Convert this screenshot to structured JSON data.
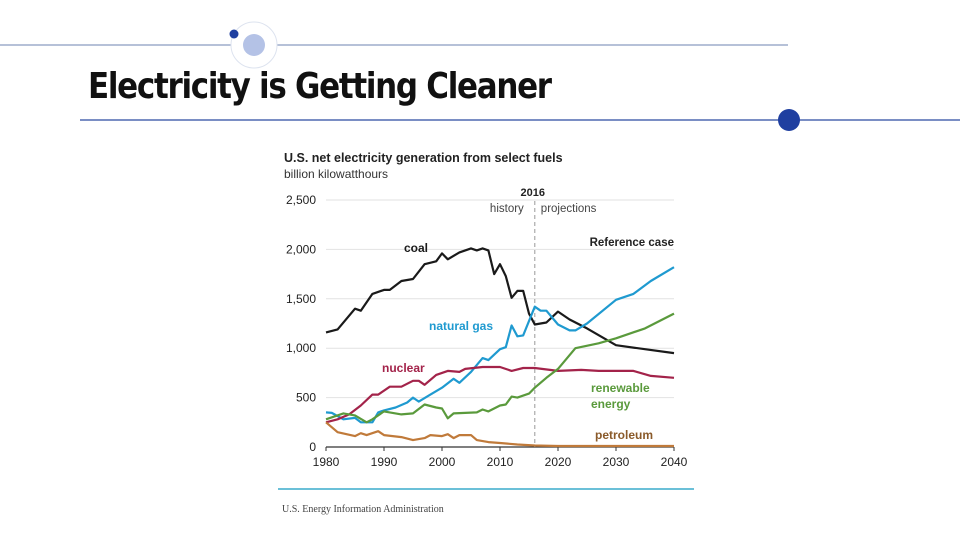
{
  "slide": {
    "title": "Electricity is Getting Cleaner",
    "accent_color": "#1f3fa0",
    "light_accent_color": "#b4c2e6"
  },
  "chart_data": {
    "type": "line",
    "title": "U.S. net electricity generation from select fuels",
    "subtitle": "billion kilowatthours",
    "source": "U.S. Energy Information Administration",
    "xlim": [
      1980,
      2040
    ],
    "ylim": [
      0,
      2500
    ],
    "x_ticks": [
      "1980",
      "1990",
      "2000",
      "2010",
      "2020",
      "2030",
      "2040"
    ],
    "y_ticks": [
      "0",
      "500",
      "1,000",
      "1,500",
      "2,000",
      "2,500"
    ],
    "grid": "horizontal",
    "divider": {
      "year": 2016,
      "label": "2016",
      "left_label": "history",
      "right_label": "projections"
    },
    "scenario_label": "Reference case",
    "series": [
      {
        "name": "coal",
        "color": "#1a1a1a",
        "points": [
          [
            1980,
            1160
          ],
          [
            1982,
            1190
          ],
          [
            1985,
            1400
          ],
          [
            1986,
            1380
          ],
          [
            1988,
            1550
          ],
          [
            1990,
            1590
          ],
          [
            1991,
            1590
          ],
          [
            1993,
            1680
          ],
          [
            1995,
            1700
          ],
          [
            1997,
            1850
          ],
          [
            1999,
            1880
          ],
          [
            2000,
            1960
          ],
          [
            2001,
            1900
          ],
          [
            2003,
            1970
          ],
          [
            2005,
            2010
          ],
          [
            2006,
            1990
          ],
          [
            2007,
            2010
          ],
          [
            2008,
            1990
          ],
          [
            2009,
            1750
          ],
          [
            2010,
            1850
          ],
          [
            2011,
            1730
          ],
          [
            2012,
            1510
          ],
          [
            2013,
            1580
          ],
          [
            2014,
            1580
          ],
          [
            2015,
            1350
          ],
          [
            2016,
            1240
          ],
          [
            2018,
            1260
          ],
          [
            2020,
            1370
          ],
          [
            2022,
            1290
          ],
          [
            2025,
            1200
          ],
          [
            2030,
            1030
          ],
          [
            2035,
            990
          ],
          [
            2040,
            950
          ]
        ]
      },
      {
        "name": "natural gas",
        "color": "#1f9ad0",
        "points": [
          [
            1980,
            350
          ],
          [
            1981,
            345
          ],
          [
            1983,
            280
          ],
          [
            1985,
            295
          ],
          [
            1986,
            250
          ],
          [
            1988,
            250
          ],
          [
            1989,
            350
          ],
          [
            1990,
            370
          ],
          [
            1992,
            400
          ],
          [
            1994,
            450
          ],
          [
            1995,
            500
          ],
          [
            1996,
            460
          ],
          [
            1998,
            530
          ],
          [
            2000,
            600
          ],
          [
            2002,
            690
          ],
          [
            2003,
            650
          ],
          [
            2005,
            760
          ],
          [
            2007,
            900
          ],
          [
            2008,
            880
          ],
          [
            2010,
            990
          ],
          [
            2011,
            1010
          ],
          [
            2012,
            1230
          ],
          [
            2013,
            1120
          ],
          [
            2014,
            1130
          ],
          [
            2016,
            1420
          ],
          [
            2017,
            1380
          ],
          [
            2018,
            1380
          ],
          [
            2020,
            1240
          ],
          [
            2022,
            1180
          ],
          [
            2023,
            1180
          ],
          [
            2025,
            1250
          ],
          [
            2030,
            1490
          ],
          [
            2033,
            1550
          ],
          [
            2036,
            1680
          ],
          [
            2040,
            1820
          ]
        ]
      },
      {
        "name": "nuclear",
        "color": "#a3234a",
        "points": [
          [
            1980,
            250
          ],
          [
            1982,
            280
          ],
          [
            1984,
            330
          ],
          [
            1986,
            420
          ],
          [
            1988,
            530
          ],
          [
            1989,
            530
          ],
          [
            1991,
            610
          ],
          [
            1993,
            610
          ],
          [
            1995,
            670
          ],
          [
            1996,
            670
          ],
          [
            1997,
            630
          ],
          [
            1999,
            730
          ],
          [
            2001,
            770
          ],
          [
            2003,
            760
          ],
          [
            2004,
            790
          ],
          [
            2007,
            810
          ],
          [
            2010,
            810
          ],
          [
            2012,
            770
          ],
          [
            2014,
            800
          ],
          [
            2016,
            800
          ],
          [
            2020,
            770
          ],
          [
            2024,
            780
          ],
          [
            2027,
            770
          ],
          [
            2033,
            770
          ],
          [
            2036,
            720
          ],
          [
            2040,
            700
          ]
        ]
      },
      {
        "name": "renewable energy",
        "color": "#5a9a3c",
        "points": [
          [
            1980,
            280
          ],
          [
            1983,
            340
          ],
          [
            1985,
            320
          ],
          [
            1987,
            250
          ],
          [
            1988,
            280
          ],
          [
            1990,
            360
          ],
          [
            1993,
            330
          ],
          [
            1995,
            340
          ],
          [
            1997,
            430
          ],
          [
            1999,
            400
          ],
          [
            2000,
            390
          ],
          [
            2001,
            290
          ],
          [
            2002,
            340
          ],
          [
            2006,
            350
          ],
          [
            2007,
            380
          ],
          [
            2008,
            360
          ],
          [
            2010,
            420
          ],
          [
            2011,
            430
          ],
          [
            2012,
            510
          ],
          [
            2013,
            500
          ],
          [
            2015,
            540
          ],
          [
            2016,
            600
          ],
          [
            2018,
            700
          ],
          [
            2020,
            790
          ],
          [
            2023,
            1000
          ],
          [
            2027,
            1050
          ],
          [
            2030,
            1100
          ],
          [
            2035,
            1200
          ],
          [
            2040,
            1350
          ]
        ]
      },
      {
        "name": "petroleum",
        "color": "#c07a3a",
        "points": [
          [
            1980,
            250
          ],
          [
            1982,
            150
          ],
          [
            1985,
            110
          ],
          [
            1986,
            140
          ],
          [
            1987,
            120
          ],
          [
            1989,
            160
          ],
          [
            1990,
            120
          ],
          [
            1993,
            100
          ],
          [
            1995,
            70
          ],
          [
            1997,
            90
          ],
          [
            1998,
            120
          ],
          [
            2000,
            110
          ],
          [
            2001,
            130
          ],
          [
            2002,
            90
          ],
          [
            2003,
            120
          ],
          [
            2005,
            120
          ],
          [
            2006,
            70
          ],
          [
            2008,
            50
          ],
          [
            2010,
            40
          ],
          [
            2013,
            25
          ],
          [
            2016,
            15
          ],
          [
            2020,
            10
          ],
          [
            2040,
            10
          ]
        ]
      }
    ]
  }
}
